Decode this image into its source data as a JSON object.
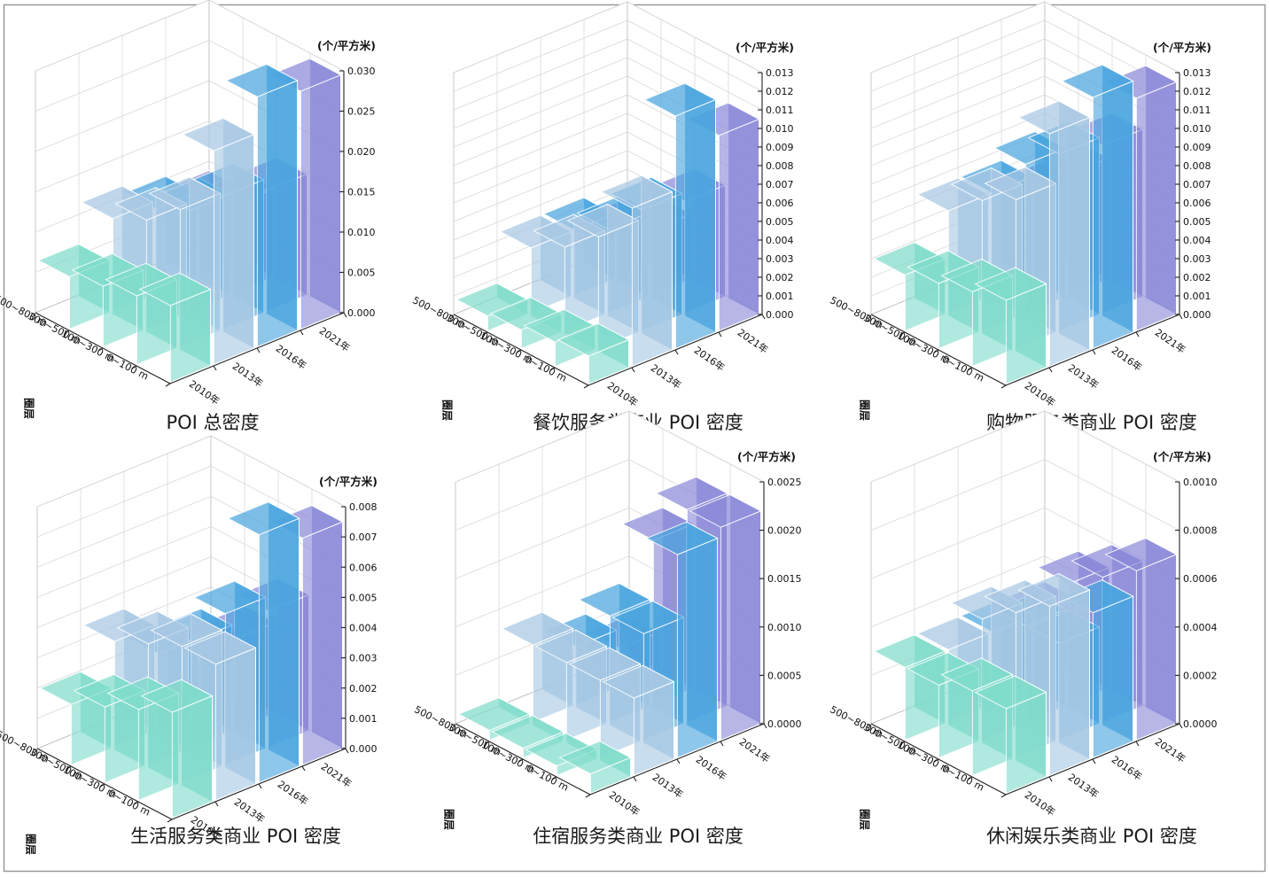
{
  "chart_data": [
    {
      "type": "bar3d",
      "title": "POI 总密度",
      "unit": "(个/平方米)",
      "y_axis": "圈层",
      "rings": [
        "0~100 m",
        "100~300 m",
        "300~500 m",
        "500~800 m"
      ],
      "years": [
        "2010年",
        "2013年",
        "2016年",
        "2021年"
      ],
      "zlim": [
        0,
        0.03
      ],
      "ticks": [
        "0.000",
        "0.005",
        "0.010",
        "0.015",
        "0.020",
        "0.025",
        "0.030"
      ],
      "values": [
        [
          0.0095,
          0.0265,
          0.031,
          0.0295
        ],
        [
          0.0085,
          0.017,
          0.0165,
          0.015
        ],
        [
          0.0075,
          0.0135,
          0.0125,
          0.011
        ],
        [
          0.0065,
          0.0115,
          0.0105,
          0.009
        ]
      ]
    },
    {
      "type": "bar3d",
      "title": "餐饮服务类商业 POI 密度",
      "unit": "(个/平方米)",
      "y_axis": "圈层",
      "rings": [
        "0~100 m",
        "100~300 m",
        "300~500 m",
        "500~800 m"
      ],
      "years": [
        "2010年",
        "2013年",
        "2016年",
        "2021年"
      ],
      "zlim": [
        0,
        0.013
      ],
      "ticks": [
        "0.000",
        "0.001",
        "0.002",
        "0.003",
        "0.004",
        "0.005",
        "0.006",
        "0.007",
        "0.008",
        "0.009",
        "0.010",
        "0.011",
        "0.012",
        "0.013"
      ],
      "values": [
        [
          0.0015,
          0.0085,
          0.0125,
          0.0105
        ],
        [
          0.0013,
          0.006,
          0.0065,
          0.006
        ],
        [
          0.001,
          0.0045,
          0.0045,
          0.0035
        ],
        [
          0.0008,
          0.0035,
          0.0035,
          0.0025
        ]
      ]
    },
    {
      "type": "bar3d",
      "title": "购物服务类商业 POI 密度",
      "unit": "(个/平方米)",
      "y_axis": "圈层",
      "rings": [
        "0~100 m",
        "100~300 m",
        "300~500 m",
        "500~800 m"
      ],
      "years": [
        "2010年",
        "2013年",
        "2016年",
        "2021年"
      ],
      "zlim": [
        0,
        0.013
      ],
      "ticks": [
        "0.000",
        "0.001",
        "0.002",
        "0.003",
        "0.004",
        "0.005",
        "0.006",
        "0.007",
        "0.008",
        "0.009",
        "0.010",
        "0.011",
        "0.012",
        "0.013"
      ],
      "values": [
        [
          0.0045,
          0.0125,
          0.0135,
          0.0125
        ],
        [
          0.004,
          0.008,
          0.0095,
          0.009
        ],
        [
          0.0035,
          0.007,
          0.008,
          0.0065
        ],
        [
          0.003,
          0.0055,
          0.0055,
          0.0045
        ]
      ]
    },
    {
      "type": "bar3d",
      "title": "生活服务类商业 POI 密度",
      "unit": "(个/平方米)",
      "y_axis": "圈层",
      "rings": [
        "0~100 m",
        "100~300 m",
        "300~500 m",
        "500~800 m"
      ],
      "years": [
        "2010年",
        "2013年",
        "2016年",
        "2021年"
      ],
      "zlim": [
        0,
        0.008
      ],
      "ticks": [
        "0.000",
        "0.001",
        "0.002",
        "0.003",
        "0.004",
        "0.005",
        "0.006",
        "0.007",
        "0.008"
      ],
      "values": [
        [
          0.0035,
          0.0045,
          0.0082,
          0.0075
        ],
        [
          0.003,
          0.0045,
          0.005,
          0.0045
        ],
        [
          0.0025,
          0.004,
          0.0035,
          0.003
        ],
        [
          0.002,
          0.0035,
          0.0025,
          0.002
        ]
      ]
    },
    {
      "type": "bar3d",
      "title": "住宿服务类商业 POI 密度",
      "unit": "(个/平方米)",
      "y_axis": "圈层",
      "rings": [
        "0~100 m",
        "100~300 m",
        "300~500 m",
        "500~800 m"
      ],
      "years": [
        "2010年",
        "2013年",
        "2016年",
        "2021年"
      ],
      "zlim": [
        0,
        0.0025
      ],
      "ticks": [
        "0.0000",
        "0.0005",
        "0.0010",
        "0.0015",
        "0.0020",
        "0.0025"
      ],
      "values": [
        [
          0.0002,
          0.0008,
          0.0021,
          0.0022
        ],
        [
          0.0001,
          0.0008,
          0.0011,
          0.0022
        ],
        [
          0.0001,
          0.0008,
          0.0011,
          0.0017
        ],
        [
          0.0001,
          0.0008,
          0.0006,
          0.0004
        ]
      ]
    },
    {
      "type": "bar3d",
      "title": "休闲娱乐类商业 POI 密度",
      "unit": "(个/平方米)",
      "y_axis": "圈层",
      "rings": [
        "0~100 m",
        "100~300 m",
        "300~500 m",
        "500~800 m"
      ],
      "years": [
        "2010年",
        "2013年",
        "2016年",
        "2021年"
      ],
      "zlim": [
        0,
        0.001
      ],
      "ticks": [
        "0.0000",
        "0.0002",
        "0.0004",
        "0.0006",
        "0.0008",
        "0.0010"
      ],
      "values": [
        [
          0.00035,
          0.0007,
          0.0006,
          0.0007
        ],
        [
          0.00035,
          0.0006,
          0.0004,
          0.0006
        ],
        [
          0.0003,
          0.0005,
          0.0004,
          0.0005
        ],
        [
          0.0003,
          0.0003,
          0.0003,
          0.0003
        ]
      ]
    }
  ],
  "colors": [
    "#7fdccb",
    "#a7c8e3",
    "#4aa5de",
    "#8b89d8"
  ]
}
